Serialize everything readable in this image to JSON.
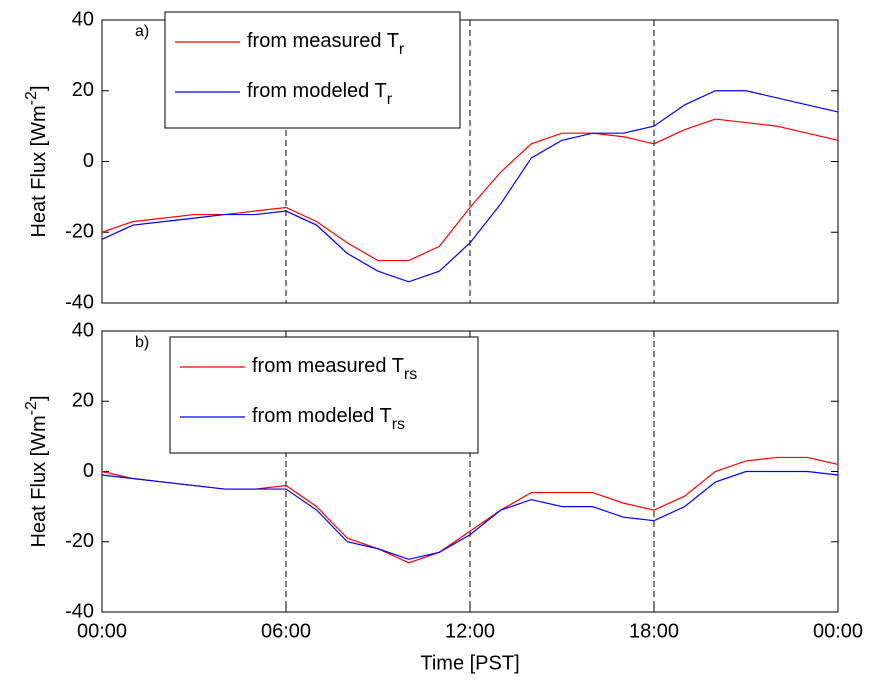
{
  "chart_data": [
    {
      "type": "line",
      "panel_label": "a)",
      "ylabel": [
        "Heat Flux [Wm",
        "-2",
        "]"
      ],
      "x": [
        0,
        1,
        2,
        3,
        4,
        5,
        6,
        7,
        8,
        9,
        10,
        11,
        12,
        13,
        14,
        15,
        16,
        17,
        18,
        19,
        20,
        21,
        22,
        23,
        24
      ],
      "xlim": [
        0,
        24
      ],
      "ylim": [
        -40,
        40
      ],
      "yticks": [
        -40,
        -20,
        0,
        20,
        40
      ],
      "vlines": [
        6,
        12,
        18
      ],
      "legend": "upper left",
      "series": [
        {
          "name": "from measured T",
          "subscript": "r",
          "color": "#ff0000",
          "values": [
            -20,
            -17,
            -16,
            -15,
            -15,
            -14,
            -13,
            -17,
            -23,
            -28,
            -28,
            -24,
            -13,
            -3,
            5,
            8,
            8,
            7,
            5,
            9,
            12,
            11,
            10,
            8,
            6
          ]
        },
        {
          "name": "from modeled T",
          "subscript": "r",
          "color": "#0000ff",
          "values": [
            -22,
            -18,
            -17,
            -16,
            -15,
            -15,
            -14,
            -18,
            -26,
            -31,
            -34,
            -31,
            -23,
            -12,
            1,
            6,
            8,
            8,
            10,
            16,
            20,
            20,
            18,
            16,
            14
          ]
        }
      ]
    },
    {
      "type": "line",
      "panel_label": "b)",
      "ylabel": [
        "Heat Flux [Wm",
        "-2",
        "]"
      ],
      "xlabel": "Time [PST]",
      "x": [
        0,
        1,
        2,
        3,
        4,
        5,
        6,
        7,
        8,
        9,
        10,
        11,
        12,
        13,
        14,
        15,
        16,
        17,
        18,
        19,
        20,
        21,
        22,
        23,
        24
      ],
      "xlim": [
        0,
        24
      ],
      "ylim": [
        -40,
        40
      ],
      "yticks": [
        -40,
        -20,
        0,
        20,
        40
      ],
      "xticks": [
        {
          "value": 0,
          "label": "00:00"
        },
        {
          "value": 6,
          "label": "06:00"
        },
        {
          "value": 12,
          "label": "12:00"
        },
        {
          "value": 18,
          "label": "18:00"
        },
        {
          "value": 24,
          "label": "00:00"
        }
      ],
      "vlines": [
        6,
        12,
        18,
        24
      ],
      "legend": "upper left",
      "series": [
        {
          "name": "from measured T",
          "subscript": "rs",
          "color": "#ff0000",
          "values": [
            0,
            -2,
            -3,
            -4,
            -5,
            -5,
            -4,
            -10,
            -19,
            -22,
            -26,
            -23,
            -17,
            -11,
            -6,
            -6,
            -6,
            -9,
            -11,
            -7,
            0,
            3,
            4,
            4,
            2
          ]
        },
        {
          "name": "from modeled T",
          "subscript": "rs",
          "color": "#0000ff",
          "values": [
            -1,
            -2,
            -3,
            -4,
            -5,
            -5,
            -5,
            -11,
            -20,
            -22,
            -25,
            -23,
            -18,
            -11,
            -8,
            -10,
            -10,
            -13,
            -14,
            -10,
            -3,
            0,
            0,
            0,
            -1
          ]
        }
      ]
    }
  ]
}
